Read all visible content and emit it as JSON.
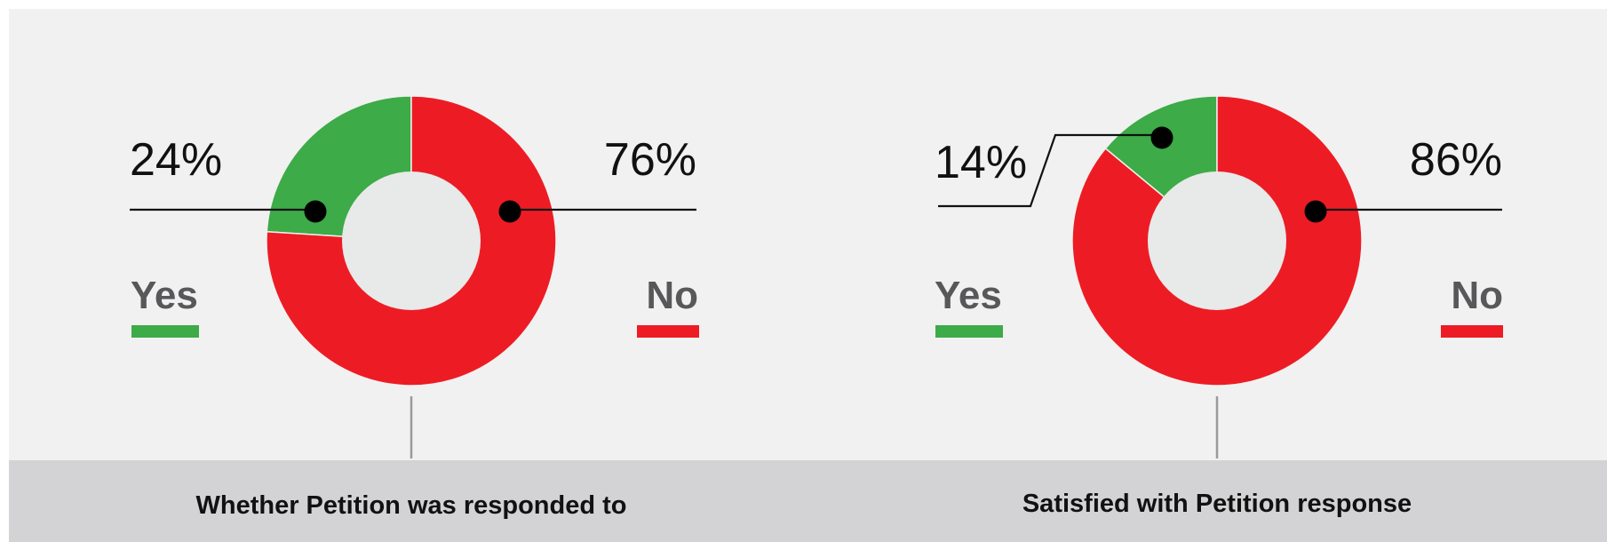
{
  "colors": {
    "yes": "#3dab47",
    "no": "#ed1c24",
    "donut_hole": "#e8e9e9",
    "panel_bg": "#f1f1f1",
    "title_band": "#d3d2d4"
  },
  "chart_data": [
    {
      "type": "pie",
      "title": "Whether Petition was responded to",
      "categories": [
        "Yes",
        "No"
      ],
      "values": [
        24,
        76
      ],
      "labels": [
        "24%",
        "76%"
      ],
      "legend": [
        {
          "name": "Yes",
          "color": "#3dab47"
        },
        {
          "name": "No",
          "color": "#ed1c24"
        }
      ]
    },
    {
      "type": "pie",
      "title": "Satisfied with Petition response",
      "categories": [
        "Yes",
        "No"
      ],
      "values": [
        14,
        86
      ],
      "labels": [
        "14%",
        "86%"
      ],
      "legend": [
        {
          "name": "Yes",
          "color": "#3dab47"
        },
        {
          "name": "No",
          "color": "#ed1c24"
        }
      ]
    }
  ]
}
